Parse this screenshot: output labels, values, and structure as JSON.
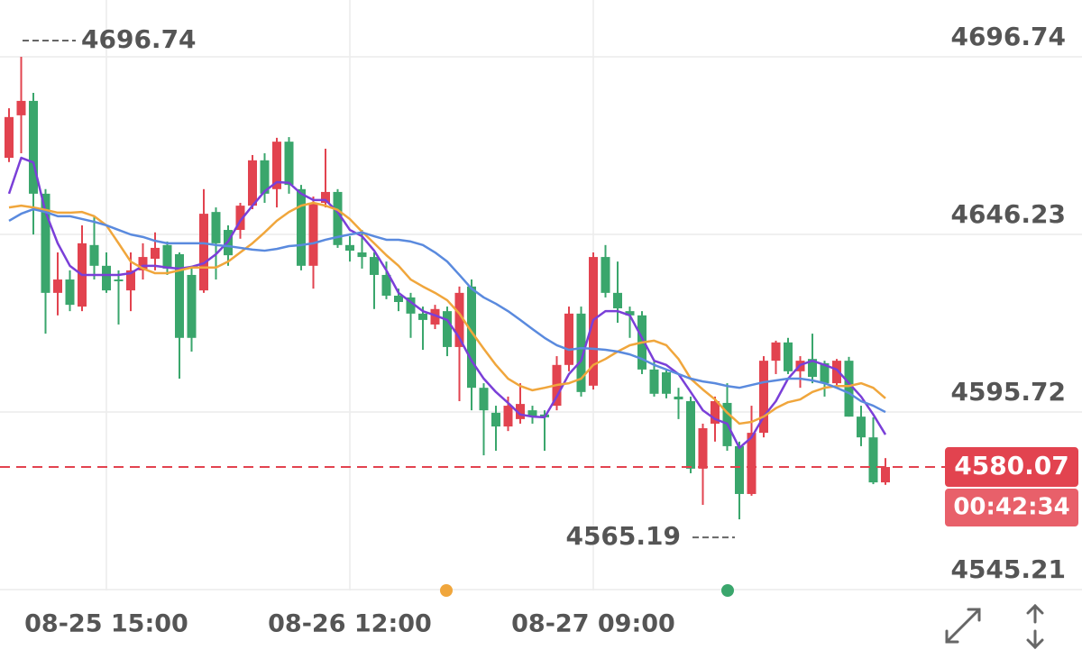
{
  "chart_data": {
    "type": "candlestick",
    "categories": [
      null,
      null,
      null,
      null,
      null,
      null,
      null,
      null,
      "08-25 15:00",
      null,
      null,
      null,
      null,
      null,
      null,
      null,
      null,
      null,
      null,
      null,
      null,
      null,
      null,
      null,
      null,
      null,
      null,
      null,
      "08-26 12:00",
      null,
      null,
      null,
      null,
      null,
      null,
      null,
      null,
      null,
      null,
      null,
      null,
      null,
      null,
      null,
      null,
      null,
      null,
      null,
      "08-27 09:00",
      null,
      null,
      null,
      null,
      null,
      null,
      null,
      null,
      null,
      null,
      null,
      null,
      null,
      null,
      null,
      null,
      null,
      null,
      null,
      null,
      null,
      null,
      null,
      null
    ],
    "open": [
      4668.0,
      4680.1,
      4684.2,
      4657.8,
      4629.6,
      4633.4,
      4625.7,
      4643.2,
      4637.3,
      4633.4,
      4630.3,
      4636.0,
      4639.3,
      4643.2,
      4640.6,
      4634.7,
      4630.3,
      4652.6,
      4647.5,
      4647.5,
      4654.4,
      4667.3,
      4659.1,
      4672.6,
      4659.1,
      4637.3,
      4655.2,
      4658.3,
      4643.2,
      4641.1,
      4639.8,
      4634.7,
      4628.8,
      4628.3,
      4623.7,
      4620.6,
      4624.4,
      4614.2,
      4631.4,
      4602.6,
      4595.5,
      4591.6,
      4593.7,
      4596.2,
      4595.0,
      4597.5,
      4609.1,
      4623.7,
      4603.2,
      4639.8,
      4629.6,
      4624.4,
      4623.2,
      4607.8,
      4607.0,
      4600.1,
      4598.8,
      4579.6,
      4592.4,
      4598.3,
      4586.0,
      4572.4,
      4589.8,
      4610.3,
      4615.5,
      4607.3,
      4610.8,
      4609.6,
      4603.9,
      4610.3,
      4594.4,
      4588.5,
      4575.7
    ],
    "high": [
      4682.1,
      4696.74,
      4686.5,
      4659.1,
      4641.1,
      4636.0,
      4648.8,
      4651.4,
      4641.1,
      4636.0,
      4641.1,
      4643.7,
      4646.8,
      4644.2,
      4641.1,
      4637.3,
      4659.1,
      4653.9,
      4648.8,
      4655.2,
      4668.8,
      4669.3,
      4673.7,
      4673.9,
      4660.3,
      4657.0,
      4670.6,
      4659.1,
      4645.7,
      4647.5,
      4641.1,
      4638.5,
      4630.8,
      4629.6,
      4625.7,
      4626.2,
      4625.7,
      4631.4,
      4633.4,
      4603.9,
      4597.5,
      4600.1,
      4603.9,
      4597.5,
      4596.2,
      4611.6,
      4625.7,
      4625.7,
      4641.1,
      4643.2,
      4638.5,
      4625.7,
      4624.4,
      4610.3,
      4607.8,
      4602.6,
      4600.1,
      4592.4,
      4600.1,
      4603.9,
      4587.3,
      4597.5,
      4611.6,
      4616.0,
      4616.8,
      4611.6,
      4618.0,
      4610.3,
      4610.8,
      4611.4,
      4597.5,
      4594.2,
      4582.6
    ],
    "low": [
      4666.8,
      4669.3,
      4646.2,
      4618.0,
      4623.2,
      4624.4,
      4624.4,
      4633.4,
      4629.6,
      4620.6,
      4624.4,
      4633.4,
      4636.0,
      4634.7,
      4605.2,
      4612.9,
      4629.6,
      4633.4,
      4637.3,
      4645.0,
      4653.4,
      4655.2,
      4653.9,
      4657.8,
      4636.0,
      4630.8,
      4653.9,
      4642.4,
      4638.5,
      4636.5,
      4625.0,
      4627.8,
      4624.4,
      4616.8,
      4613.4,
      4619.3,
      4611.6,
      4598.8,
      4596.2,
      4583.4,
      4584.7,
      4590.3,
      4592.4,
      4592.4,
      4584.7,
      4596.2,
      4607.3,
      4600.1,
      4602.1,
      4628.3,
      4621.1,
      4616.8,
      4606.5,
      4600.1,
      4599.6,
      4593.7,
      4578.3,
      4569.3,
      4587.3,
      4584.7,
      4565.19,
      4571.9,
      4588.5,
      4606.5,
      4606.5,
      4602.6,
      4603.9,
      4600.1,
      4602.6,
      4594.4,
      4586.0,
      4575.2,
      4575.0
    ],
    "close": [
      4679.6,
      4684.2,
      4657.8,
      4629.6,
      4633.4,
      4626.2,
      4643.7,
      4637.3,
      4630.3,
      4632.9,
      4636.0,
      4639.8,
      4642.4,
      4636.5,
      4616.8,
      4616.8,
      4652.1,
      4643.7,
      4640.3,
      4654.4,
      4667.3,
      4657.8,
      4672.6,
      4660.3,
      4637.3,
      4655.2,
      4658.3,
      4643.2,
      4641.6,
      4639.8,
      4634.7,
      4628.8,
      4627.0,
      4623.7,
      4621.9,
      4625.0,
      4614.2,
      4629.6,
      4602.6,
      4596.2,
      4591.6,
      4597.5,
      4598.0,
      4594.4,
      4594.2,
      4609.1,
      4623.7,
      4601.4,
      4639.8,
      4629.6,
      4625.2,
      4623.2,
      4607.8,
      4600.9,
      4600.9,
      4599.3,
      4579.6,
      4591.1,
      4598.8,
      4586.0,
      4572.4,
      4589.8,
      4610.3,
      4615.5,
      4607.3,
      4610.3,
      4605.7,
      4603.9,
      4610.3,
      4594.4,
      4588.5,
      4575.7,
      4580.07
    ],
    "up_color": "#e2434f",
    "down_color": "#3aa66c",
    "lines": [
      {
        "color": "#7a3fd8",
        "values": [
          4657.8,
          4668.0,
          4666.7,
          4652.6,
          4643.7,
          4637.3,
          4634.7,
          4634.7,
          4634.7,
          4634.7,
          4635.2,
          4637.3,
          4637.3,
          4636.8,
          4636.5,
          4637.0,
          4638.0,
          4640.6,
          4644.2,
          4650.1,
          4654.4,
          4658.5,
          4661.1,
          4660.9,
          4657.8,
          4656.0,
          4656.0,
          4652.6,
          4647.5,
          4645.7,
          4641.6,
          4636.0,
          4629.6,
          4627.0,
          4624.4,
          4623.2,
          4621.9,
          4616.8,
          4610.3,
          4605.2,
          4601.4,
          4598.3,
          4595.0,
          4594.4,
          4594.2,
          4600.1,
          4606.5,
          4610.3,
          4621.9,
          4624.4,
          4624.4,
          4623.2,
          4616.8,
          4610.3,
          4609.1,
          4606.5,
          4601.4,
          4596.2,
          4593.7,
          4592.4,
          4585.5,
          4588.5,
          4594.4,
          4598.8,
          4605.2,
          4609.1,
          4610.3,
          4609.1,
          4607.8,
          4603.9,
          4600.1,
          4595.0,
          4589.3
        ]
      },
      {
        "color": "#f0a63c",
        "values": [
          4653.9,
          4654.4,
          4653.9,
          4653.2,
          4652.4,
          4652.4,
          4652.6,
          4651.4,
          4648.8,
          4643.7,
          4638.5,
          4636.5,
          4635.2,
          4635.2,
          4636.0,
          4636.8,
          4636.8,
          4636.8,
          4638.5,
          4641.1,
          4643.7,
          4646.8,
          4650.1,
          4652.6,
          4654.4,
          4655.2,
          4654.4,
          4653.2,
          4650.6,
          4647.0,
          4643.7,
          4640.3,
          4637.3,
          4633.4,
          4631.4,
          4629.6,
          4627.5,
          4623.7,
          4618.5,
          4613.7,
          4609.1,
          4605.2,
          4603.1,
          4601.9,
          4602.6,
          4603.4,
          4603.9,
          4605.2,
          4609.1,
          4610.8,
          4612.9,
          4614.7,
          4615.5,
          4616.0,
          4614.7,
          4610.8,
          4605.2,
          4602.1,
          4599.3,
          4595.5,
          4592.4,
          4592.9,
          4594.4,
          4596.8,
          4598.5,
          4599.3,
          4601.4,
          4602.6,
          4603.1,
          4603.1,
          4603.9,
          4602.6,
          4599.6
        ]
      },
      {
        "color": "#5a8ade",
        "values": [
          4650.1,
          4652.1,
          4653.4,
          4652.6,
          4651.4,
          4651.4,
          4650.6,
          4649.8,
          4648.8,
          4647.5,
          4646.2,
          4645.5,
          4644.4,
          4643.7,
          4643.7,
          4643.7,
          4643.7,
          4643.2,
          4642.9,
          4642.4,
          4641.9,
          4641.6,
          4642.1,
          4642.9,
          4643.2,
          4643.7,
          4644.7,
          4645.5,
          4646.2,
          4646.8,
          4645.7,
          4644.7,
          4644.7,
          4644.2,
          4643.2,
          4641.1,
          4638.5,
          4634.7,
          4630.8,
          4628.3,
          4626.5,
          4624.4,
          4621.9,
          4619.3,
          4616.8,
          4614.7,
          4613.4,
          4613.9,
          4613.7,
          4613.4,
          4612.9,
          4612.1,
          4610.8,
          4609.1,
          4607.8,
          4606.5,
          4605.2,
          4604.4,
          4603.9,
          4603.1,
          4602.6,
          4603.4,
          4604.2,
          4604.7,
          4605.2,
          4605.2,
          4604.7,
          4603.9,
          4602.6,
          4601.1,
          4598.8,
          4597.5,
          4595.7
        ]
      }
    ],
    "ylim": [
      4545.21,
      4696.74
    ],
    "yticks": [
      4545.21,
      4595.72,
      4646.23,
      4696.74
    ],
    "grid": true,
    "countdown": "00:42:34"
  }
}
